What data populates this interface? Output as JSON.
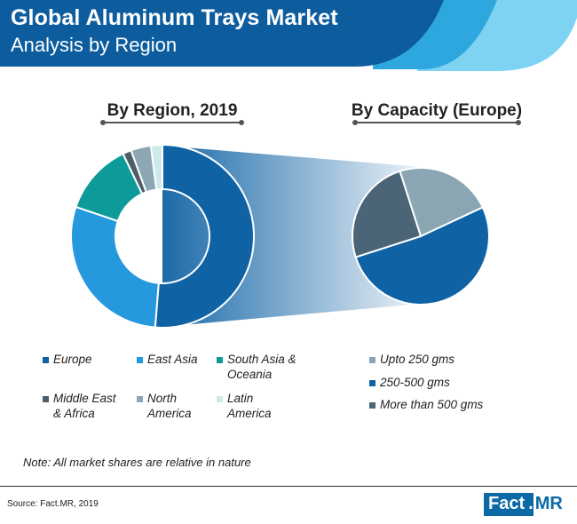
{
  "header": {
    "title_line1": "Global Aluminum Trays Market",
    "title_line2": "Analysis by Region"
  },
  "colors": {
    "banner_dark": "#0d5d9e",
    "banner_mid": "#2ea7df",
    "banner_light": "#7fd3f2",
    "europe": "#0f62a4",
    "east_asia": "#2598de",
    "south_asia_oceania": "#0d9b9a",
    "middle_east_africa": "#4d5e68",
    "north_america": "#8aa7b3",
    "latin_america": "#cdeaea",
    "upto_250": "#8aa6b3",
    "g250_500": "#0f62a4",
    "more_500": "#4b6577"
  },
  "chart_data": [
    {
      "type": "pie",
      "variant": "donut",
      "title": "By Region, 2019",
      "categories": [
        "Europe",
        "East Asia",
        "South Asia & Oceania",
        "Middle East & Africa",
        "North America",
        "Latin America"
      ],
      "values": [
        50.5,
        28.5,
        12.5,
        1.5,
        3.5,
        2.0
      ],
      "legend_position": "bottom"
    },
    {
      "type": "pie",
      "title": "By Capacity (Europe)",
      "categories": [
        "Upto 250 gms",
        "250-500 gms",
        "More than 500 gms"
      ],
      "values": [
        23,
        52,
        25
      ],
      "legend_position": "bottom"
    }
  ],
  "legend_region": [
    {
      "line1": "Europe",
      "line2": ""
    },
    {
      "line1": "East Asia",
      "line2": ""
    },
    {
      "line1": "South Asia &",
      "line2": "Oceania"
    },
    {
      "line1": "Middle East",
      "line2": "& Africa"
    },
    {
      "line1": "North",
      "line2": "America"
    },
    {
      "line1": "Latin",
      "line2": "America"
    }
  ],
  "legend_capacity": [
    "Upto 250 gms",
    "250-500 gms",
    "More than 500 gms"
  ],
  "note": "Note: All market shares are relative in nature",
  "source": "Source: Fact.MR, 2019",
  "logo": {
    "part1": "Fact",
    "part2": ".",
    "part3": "MR"
  }
}
